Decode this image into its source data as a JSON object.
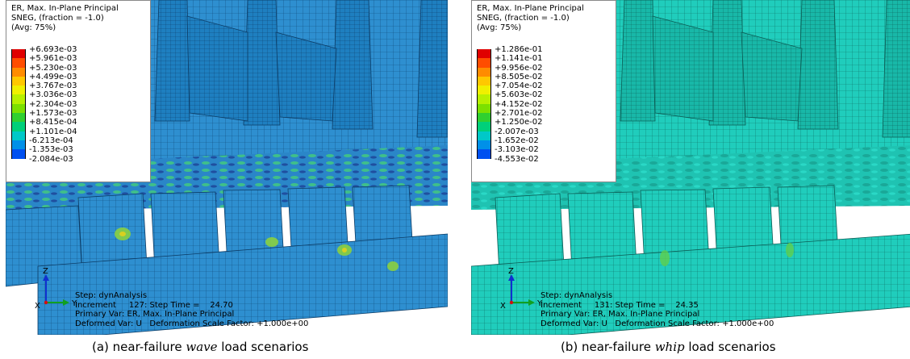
{
  "panels": [
    {
      "legend": {
        "title_lines": [
          "ER, Max. In-Plane Principal",
          "SNEG, (fraction = -1.0)",
          "(Avg: 75%)"
        ],
        "values": [
          "+6.693e-03",
          "+5.961e-03",
          "+5.230e-03",
          "+4.499e-03",
          "+3.767e-03",
          "+3.036e-03",
          "+2.304e-03",
          "+1.573e-03",
          "+8.415e-04",
          "+1.101e-04",
          "-6.213e-04",
          "-1.353e-03",
          "-2.084e-03"
        ]
      },
      "step_info": [
        "Step: dynAnalysis",
        "Increment     127: Step Time =    24.70",
        "Primary Var: ER, Max. In-Plane Principal",
        "Deformed Var: U   Deformation Scale Factor: +1.000e+00"
      ],
      "triad": {
        "x": "X",
        "y": "Y",
        "z": "Z"
      },
      "caption": {
        "prefix": "(a) near-failure ",
        "emph": "wave",
        "suffix": " load scenarios"
      },
      "mesh_color": "#2e8fd0"
    },
    {
      "legend": {
        "title_lines": [
          "ER, Max. In-Plane Principal",
          "SNEG, (fraction = -1.0)",
          "(Avg: 75%)"
        ],
        "values": [
          "+1.286e-01",
          "+1.141e-01",
          "+9.956e-02",
          "+8.505e-02",
          "+7.054e-02",
          "+5.603e-02",
          "+4.152e-02",
          "+2.701e-02",
          "+1.250e-02",
          "-2.007e-03",
          "-1.652e-02",
          "-3.103e-02",
          "-4.553e-02"
        ]
      },
      "step_info": [
        "Step: dynAnalysis",
        "Increment     131: Step Time =    24.35",
        "Primary Var: ER, Max. In-Plane Principal",
        "Deformed Var: U   Deformation Scale Factor: +1.000e+00"
      ],
      "triad": {
        "x": "X",
        "y": "Y",
        "z": "Z"
      },
      "caption": {
        "prefix": "(b) near-failure ",
        "emph": "whip",
        "suffix": " load scenarios"
      },
      "mesh_color": "#1fc9b8"
    }
  ],
  "legend_colors": [
    "#e00000",
    "#ff4d00",
    "#ff8c00",
    "#ffc800",
    "#f0f000",
    "#b8f000",
    "#7ce000",
    "#30d030",
    "#00d07a",
    "#00c8c8",
    "#0090e8",
    "#0050f0",
    "#0000e0"
  ]
}
